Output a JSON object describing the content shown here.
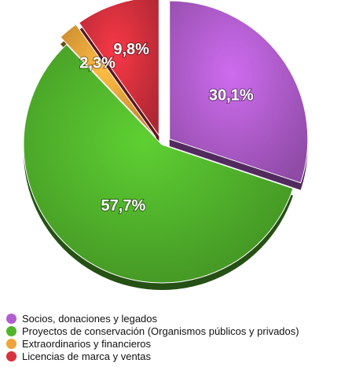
{
  "chart_data": {
    "type": "pie",
    "title": "",
    "legend_position": "bottom-left",
    "categories": [
      "Socios, donaciones y legados",
      "Proyectos de conservación (Organismos públicos y privados)",
      "Extraordinarios y financieros",
      "Licencias de marca y ventas"
    ],
    "values": [
      30.1,
      57.7,
      2.3,
      9.8
    ],
    "value_labels": [
      "30,1%",
      "57,7%",
      "2,3%",
      "9,8%"
    ],
    "colors": [
      "#b35ed0",
      "#52b52c",
      "#f0a43a",
      "#d8313e"
    ],
    "exploded": [
      true,
      false,
      true,
      true
    ]
  }
}
